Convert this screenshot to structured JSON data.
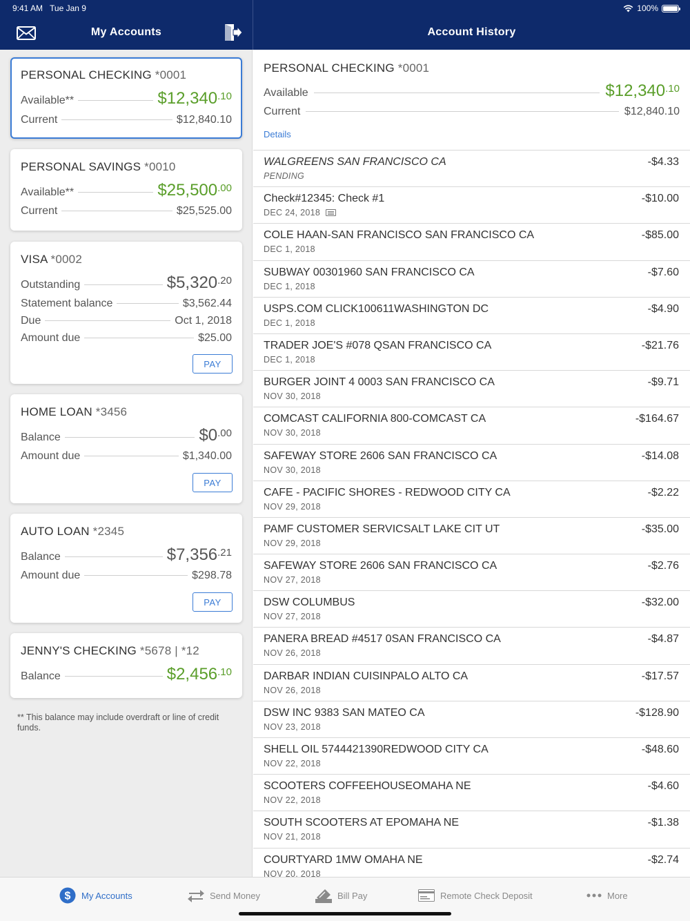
{
  "status": {
    "time": "9:41 AM",
    "date": "Tue Jan 9",
    "battery": "100%",
    "battery_level": 1.0
  },
  "header": {
    "left_title": "My Accounts",
    "right_title": "Account History"
  },
  "accounts": {
    "personal_checking": {
      "name": "PERSONAL CHECKING",
      "number": "*0001",
      "available_label": "Available**",
      "available_main": "$12,340",
      "available_cents": ".10",
      "current_label": "Current",
      "current": "$12,840.10"
    },
    "personal_savings": {
      "name": "PERSONAL SAVINGS",
      "number": "*0010",
      "available_label": "Available**",
      "available_main": "$25,500",
      "available_cents": ".00",
      "current_label": "Current",
      "current": "$25,525.00"
    },
    "visa": {
      "name": "VISA",
      "number": "*0002",
      "outstanding_label": "Outstanding",
      "outstanding_main": "$5,320",
      "outstanding_cents": ".20",
      "statement_label": "Statement balance",
      "statement": "$3,562.44",
      "due_label": "Due",
      "due": "Oct 1, 2018",
      "amount_due_label": "Amount due",
      "amount_due": "$25.00",
      "pay_label": "PAY"
    },
    "home_loan": {
      "name": "HOME LOAN",
      "number": "*3456",
      "balance_label": "Balance",
      "balance_main": "$0",
      "balance_cents": ".00",
      "amount_due_label": "Amount due",
      "amount_due": "$1,340.00",
      "pay_label": "PAY"
    },
    "auto_loan": {
      "name": "AUTO LOAN",
      "number": "*2345",
      "balance_label": "Balance",
      "balance_main": "$7,356",
      "balance_cents": ".21",
      "amount_due_label": "Amount due",
      "amount_due": "$298.78",
      "pay_label": "PAY"
    },
    "jennys_checking": {
      "name": "JENNY'S CHECKING",
      "number": "*5678 | *12",
      "balance_label": "Balance",
      "balance_main": "$2,456",
      "balance_cents": ".10"
    }
  },
  "footnote": "** This balance may include overdraft or line of credit funds.",
  "history": {
    "name": "PERSONAL CHECKING",
    "number": "*0001",
    "available_label": "Available",
    "available_main": "$12,340",
    "available_cents": ".10",
    "current_label": "Current",
    "current": "$12,840.10",
    "details_label": "Details",
    "transactions": [
      {
        "desc": "WALGREENS SAN FRANCISCO CA",
        "date": "PENDING",
        "amount": "-$4.33"
      },
      {
        "desc": "Check#12345: Check #1",
        "date": "DEC 24, 2018",
        "amount": "-$10.00"
      },
      {
        "desc": "COLE HAAN-SAN FRANCISCO SAN FRANCISCO CA",
        "date": "DEC 1, 2018",
        "amount": "-$85.00"
      },
      {
        "desc": "SUBWAY 00301960 SAN FRANCISCO CA",
        "date": "DEC 1, 2018",
        "amount": "-$7.60"
      },
      {
        "desc": "USPS.COM CLICK100611WASHINGTON DC",
        "date": "DEC 1, 2018",
        "amount": "-$4.90"
      },
      {
        "desc": "TRADER JOE'S #078 QSAN FRANCISCO CA",
        "date": "DEC 1, 2018",
        "amount": "-$21.76"
      },
      {
        "desc": "BURGER JOINT 4 0003 SAN FRANCISCO CA",
        "date": "NOV 30, 2018",
        "amount": "-$9.71"
      },
      {
        "desc": "COMCAST CALIFORNIA 800-COMCAST CA",
        "date": "NOV 30, 2018",
        "amount": "-$164.67"
      },
      {
        "desc": "SAFEWAY STORE 2606 SAN FRANCISCO CA",
        "date": "NOV 30, 2018",
        "amount": "-$14.08"
      },
      {
        "desc": "CAFE - PACIFIC SHORES - REDWOOD CITY CA",
        "date": "NOV 29, 2018",
        "amount": "-$2.22"
      },
      {
        "desc": "PAMF CUSTOMER SERVICSALT LAKE CIT UT",
        "date": "NOV 29, 2018",
        "amount": "-$35.00"
      },
      {
        "desc": "SAFEWAY STORE 2606 SAN FRANCISCO CA",
        "date": "NOV 27, 2018",
        "amount": "-$2.76"
      },
      {
        "desc": "DSW COLUMBUS",
        "date": "NOV 27, 2018",
        "amount": "-$32.00"
      },
      {
        "desc": "PANERA BREAD #4517 0SAN FRANCISCO CA",
        "date": "NOV 26, 2018",
        "amount": "-$4.87"
      },
      {
        "desc": "DARBAR INDIAN CUISINPALO ALTO CA",
        "date": "NOV 26, 2018",
        "amount": "-$17.57"
      },
      {
        "desc": "DSW INC 9383 SAN MATEO CA",
        "date": "NOV 23, 2018",
        "amount": "-$128.90"
      },
      {
        "desc": "SHELL OIL 5744421390REDWOOD CITY CA",
        "date": "NOV 22, 2018",
        "amount": "-$48.60"
      },
      {
        "desc": "SCOOTERS COFFEEHOUSEOMAHA NE",
        "date": "NOV 22, 2018",
        "amount": "-$4.60"
      },
      {
        "desc": "SOUTH SCOOTERS AT EPOMAHA NE",
        "date": "NOV 21, 2018",
        "amount": "-$1.38"
      },
      {
        "desc": "COURTYARD 1MW OMAHA NE",
        "date": "NOV 20, 2018",
        "amount": "-$2.74"
      }
    ]
  },
  "tabs": {
    "my_accounts": "My Accounts",
    "send_money": "Send Money",
    "bill_pay": "Bill Pay",
    "remote_check_deposit": "Remote Check Deposit",
    "more": "More"
  },
  "colors": {
    "navy": "#0e2a6b",
    "accent": "#3a7bd5",
    "green": "#5a9e2a"
  },
  "icons": [
    "envelope-icon",
    "logout-icon",
    "wifi-icon",
    "battery-icon",
    "dollar-icon",
    "transfer-arrows-icon",
    "bill-pay-icon",
    "check-deposit-icon",
    "more-dots-icon",
    "check-image-icon"
  ]
}
